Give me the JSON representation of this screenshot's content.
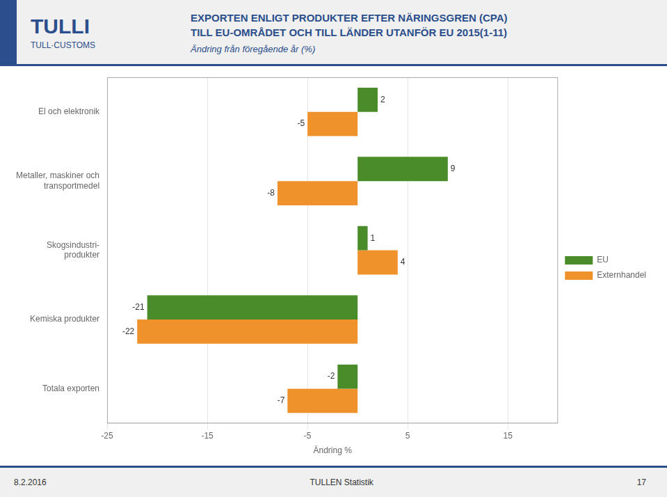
{
  "chart_data": {
    "type": "bar",
    "orientation": "horizontal",
    "title": [
      "EXPORTEN ENLIGT PRODUKTER EFTER NÄRINGSGREN (CPA)",
      "TILL EU-OMRÅDET OCH TILL LÄNDER UTANFÖR EU 2015(1-11)"
    ],
    "subtitle": "Ändring från föregående år (%)",
    "annotations": [
      "TULLI",
      "TULL·CUSTOMS",
      "8.2.2016",
      "TULLEN Statistik",
      "17"
    ],
    "categories": [
      "El och elektronik",
      "Metaller, maskiner och\ntransportmedel",
      "Skogsindustri-\nprodukter",
      "Kemiska produkter",
      "Totala exporten"
    ],
    "series": [
      {
        "name": "EU",
        "color": "#4a8c2a",
        "values": [
          2,
          9,
          1,
          -21,
          -2
        ]
      },
      {
        "name": "Externhandel",
        "color": "#f0922b",
        "values": [
          -5,
          -8,
          4,
          -22,
          -7
        ]
      }
    ],
    "xlabel": "Ändring %",
    "xlim": [
      -25,
      20
    ],
    "xticks": [
      -25,
      -15,
      -5,
      5,
      15
    ],
    "grid": true,
    "legend": "right",
    "data_labels": true
  }
}
